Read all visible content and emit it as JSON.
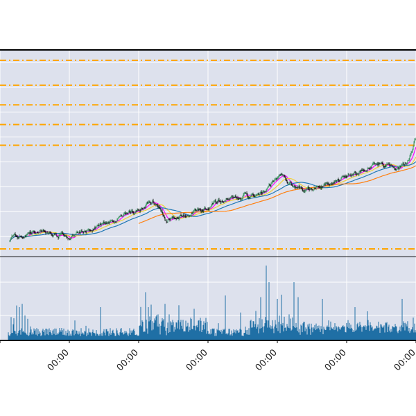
{
  "chart_data": {
    "type": "line",
    "title": "",
    "xlabel": "",
    "ylabel": "",
    "grid": true,
    "legend": "none",
    "colors": {
      "background": "#dde1ed",
      "grid": "#ffffff",
      "frame": "#000000",
      "candle_up": "#2e8b57",
      "candle_down": "#000000",
      "ma_fast": "#ff00ff",
      "ma_mid": "#f2d13a",
      "ma_slow": "#1f77b4",
      "ma_long": "#ff7f0e",
      "hlines": "#ffa500",
      "volume": "#1f6fa5"
    },
    "x_tick_labels": [
      "00:00",
      "00:00",
      "00:00",
      "00:00",
      "00:00",
      "00:00",
      "00:00"
    ],
    "x_tick_positions": [
      0,
      100,
      200,
      300,
      400,
      500,
      600
    ],
    "x_range": [
      0,
      620
    ],
    "price_panel": {
      "ylim": [
        0,
        100
      ],
      "horizontal_levels": [
        95,
        83,
        73.5,
        64,
        54,
        4
      ],
      "anchors": [
        [
          0,
          5
        ],
        [
          20,
          10
        ],
        [
          40,
          11
        ],
        [
          60,
          13
        ],
        [
          80,
          11
        ],
        [
          100,
          9.5
        ],
        [
          120,
          12
        ],
        [
          140,
          15
        ],
        [
          160,
          17.5
        ],
        [
          180,
          20
        ],
        [
          200,
          22
        ],
        [
          210,
          25
        ],
        [
          220,
          27
        ],
        [
          230,
          24
        ],
        [
          240,
          17
        ],
        [
          250,
          18.5
        ],
        [
          270,
          21
        ],
        [
          290,
          23
        ],
        [
          310,
          26
        ],
        [
          330,
          28
        ],
        [
          350,
          30
        ],
        [
          370,
          29
        ],
        [
          385,
          32
        ],
        [
          395,
          37
        ],
        [
          405,
          40
        ],
        [
          415,
          36
        ],
        [
          425,
          34
        ],
        [
          440,
          33
        ],
        [
          460,
          34
        ],
        [
          480,
          35.5
        ],
        [
          500,
          39
        ],
        [
          520,
          42
        ],
        [
          540,
          45
        ],
        [
          560,
          44
        ],
        [
          575,
          42.5
        ],
        [
          590,
          48
        ],
        [
          600,
          58
        ],
        [
          610,
          66
        ],
        [
          620,
          68
        ]
      ],
      "moving_averages": [
        {
          "key": "ma_fast",
          "window": 10
        },
        {
          "key": "ma_mid",
          "window": 25
        },
        {
          "key": "ma_slow",
          "window": 50
        },
        {
          "key": "ma_long",
          "window": 100,
          "start": 100
        }
      ]
    },
    "volume_panel": {
      "ylim": [
        0,
        100
      ],
      "spikes": [
        [
          24,
          42
        ],
        [
          28,
          40
        ],
        [
          32,
          44
        ],
        [
          36,
          30
        ],
        [
          40,
          26
        ],
        [
          108,
          24
        ],
        [
          145,
          40
        ],
        [
          210,
          58
        ],
        [
          214,
          40
        ],
        [
          218,
          43
        ],
        [
          238,
          44
        ],
        [
          280,
          38
        ],
        [
          325,
          54
        ],
        [
          376,
          52
        ],
        [
          384,
          90
        ],
        [
          388,
          70
        ],
        [
          400,
          50
        ],
        [
          406,
          55
        ],
        [
          424,
          70
        ],
        [
          430,
          52
        ],
        [
          465,
          50
        ],
        [
          512,
          40
        ],
        [
          530,
          35
        ],
        [
          580,
          50
        ]
      ]
    }
  }
}
